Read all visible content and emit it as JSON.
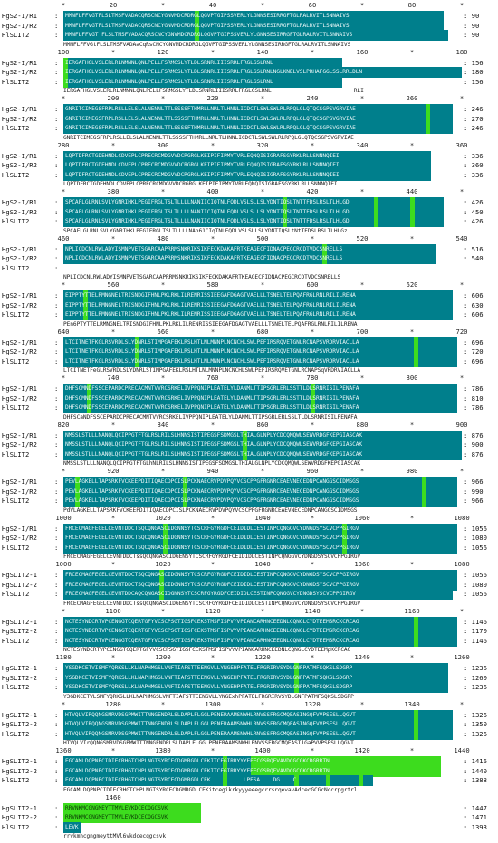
{
  "figure": {
    "type": "multiple-sequence-alignment",
    "colors": {
      "identical": "#007f8c",
      "similar": "#3ddc1e",
      "background": "#ffffff"
    },
    "blocks": [
      {
        "ruler": [
          "*",
          "20",
          "*",
          "40",
          "*",
          "60",
          "*",
          "80",
          "*"
        ],
        "rows": [
          {
            "name": "HgS2-I/R1",
            "end": "90",
            "seq": "MMNFLFFVGTFLSLTMSFVADACQRSCNCYGNVMDCRDRGLQGVPTGIPSSVERLYLGNNSESIRRGFTGLRALRVITLSNNAIVS"
          },
          {
            "name": "HgS2-I/R2",
            "end": "90",
            "seq": "MMNFLFFVGTFLSLTMSFVADACQRSCNCYGNVMDCRDRGLQGVPTGIPSSVERLYLGNNSESIRRGFTGLRALRVITLSNNAIVS"
          },
          {
            "name": "HlSLIT2",
            "end": "90",
            "seq": "MMNFLFFVGT FLSLTMSFVADACQRSCNCYGNVMDCRDRGLQGVPTGIPSSVERLYLGNNSESIRRGFTGLRALRVITLSNNAIVS"
          }
        ],
        "consensus": "MMNFLFFVGtFLSLTMSFVADAaCqRsCNCYGNVMDCRDRGLQGVPTGIPSSVERLYLGNNSESIRRGFTGLRALRVITLSNNAIVS"
      },
      {
        "ruler": [
          "100",
          "*",
          "120",
          "*",
          "140",
          "*",
          "160",
          "*",
          "180"
        ],
        "rows": [
          {
            "name": "HgS2-I/R1",
            "end": "156",
            "seq": "IERGAFHGLVSLERLRLNMNNLQNLPELLFSRMGSLYTLDLSRNRLIIISRRLFRGLGSLRNL"
          },
          {
            "name": "HgS2-I/R2",
            "end": "180",
            "seq": "IERGAFHGLVSLERLRLNMNNLQNLPELLFSRMGSLYTLDLSRNRLIIISRRLFRGLGSLRNLNGLKNELVSLPRHAFGGLSSLRRLDLN"
          },
          {
            "name": "HlSLIT2",
            "end": "156",
            "seq": "IERGAFHGLVSLERLRLNMNNLQNLPELLFSRMGSLYTLDLSRNRLIIISRRLFRGLGSLRNL"
          }
        ],
        "consensus": "IERGAFHGLVSLERLRLNMNNLQNLPELLFSRMGSLYTLDLSRNRLIIISRRLFRGLGSLRNL                         RLI"
      },
      {
        "ruler": [
          "*",
          "200",
          "*",
          "220",
          "*",
          "240",
          "*",
          "260",
          "*"
        ],
        "rows": [
          {
            "name": "HgS2-I/R1",
            "end": "246",
            "seq": "GNRITCIMEGSFRPLRSLLELSLALNENNLTTLSSSSFTHMRLLNRLTLHNNLICDCTLSWLSWLRLRPQLGLQTQCSGPSVGRVIAE"
          },
          {
            "name": "HgS2-I/R2",
            "end": "270",
            "seq": "GNRITCIMEGSFRPLRSLLELSLALNENNLTTLSSSSFTHMRLLNRLTLHNNLICDCTLSWLSWLRLRPQLGLQTQCSGPSVGRVIAE"
          },
          {
            "name": "HlSLIT2",
            "end": "246",
            "seq": "GNRITCIMEGSFRPLRSLLELSLALNENNLTTLSSSSFTHMRLLNRLTLHNNLICDCTLSWLSWLRLRPQLGLQTQCSGPSVGRVIAE"
          }
        ],
        "consensus": "GNRITCIMEGSFRPLRSLLELSLALNENNLTTLSSSSFTHMRLLNRLTLHNNLICDCTLSWLSWLRLRPQLGLQTQCSGPSVGRVIAE"
      },
      {
        "ruler": [
          "280",
          "*",
          "300",
          "*",
          "320",
          "*",
          "340",
          "*",
          "360"
        ],
        "rows": [
          {
            "name": "HgS2-I/R1",
            "end": "336",
            "seq": "LQPTDFRCTGDEHNDLCDVEPLCPRECRCMDGVVDCRGRGLKEIPIFIPMYTVRLEQNQISIGRAFSGYRKLRLLSNNNQIEI"
          },
          {
            "name": "HgS2-I/R2",
            "end": "360",
            "seq": "LQPTDFRCTGDEHNDLCDVEPLCPRECRCMDGVVDCRGRGLKEIPIFIPMYTVRLEQNQISIGRAFSGYRKLRLLSNNNQIEI"
          },
          {
            "name": "HlSLIT2",
            "end": "336",
            "seq": "LQPTDFRCTGDEHNDLCDVEPLCPRECRCMDGVVDCRGRGLKEIPIFIPMYTVRLEQNQISIGRAFSGYRKLRLLSNNNQIEI"
          }
        ],
        "consensus": "LQPTDFRCTGDEHNDLCDVEPLCPRECRCMDGVVDCRGRGLKEIPIFIPMYTVRLEQNQISIGRAFSGYRKLRLLSNNNQIEI"
      },
      {
        "ruler": [
          "*",
          "380",
          "*",
          "400",
          "*",
          "420",
          "*",
          "440",
          "*"
        ],
        "rows": [
          {
            "name": "HgS2-I/R1",
            "end": "426",
            "seq": "SPCAFLGLRNLSVLYGNRIHKLPEGIFRGLTSLTLLLLNANIICIQTNLFQDLVSLSLLSLYDNTIQSLTNTTFDSLRSLTLHLGD"
          },
          {
            "name": "HgS2-I/R2",
            "end": "450",
            "seq": "SPCAFLGLRNLSVLYGNRIHKLPEGIFRGLTSLTLLLLNANIICIQTNLFQDLVSLSLLSLYDNTIQSLTNTTFDSLRSLTLHLGD"
          },
          {
            "name": "HlSLIT2",
            "end": "426",
            "seq": "SPCAFLGLRNLSVLYGNRIHKLPEGIFRGLTSLTLLLLNANIICIQTNLFQDLVSLSLLSLYDNTIQSLTNTTFDSLRSLTLHLGD"
          }
        ],
        "consensus": "SPCAFLGLRNLSVLYGNRIHKLPEGIFRGLTSLTLLLLNAn61CIqTNLFQDLVSLSLLSLYDNTIQSLtNtTFDSLRSLTLHLGz"
      },
      {
        "ruler": [
          "460",
          "*",
          "480",
          "*",
          "500",
          "*",
          "520",
          "*",
          "540"
        ],
        "rows": [
          {
            "name": "HgS2-I/R1",
            "end": "516",
            "seq": "NPLICDCNLRWLADYISMNPVETSGARCAAPRRMSNKRIKSIKFECKDAKAFRTKEAGECFIDNACPEGCRCDTVDCSNRELLS"
          },
          {
            "name": "HgS2-I/R2",
            "end": "540",
            "seq": "NPLICDCNLRWLADYISMNPVETSGARCAAPRRMSNKRIKSIKFECKDAKAFRTKEAGECFIDNACPEGCRCDTVDCSNRELLS"
          },
          {
            "name": "HlSLIT2",
            "end": "",
            "seq": ""
          }
        ],
        "consensus": "NPLICDCNLRWLADYISMNPVETSGARCAAPRRMSNKRIKSIKFECKDAKAFRTKEAGECFIDNACPEGCRCDTVDCSNRELLS"
      },
      {
        "ruler": [
          "*",
          "560",
          "*",
          "580",
          "*",
          "600",
          "*",
          "620",
          "*"
        ],
        "rows": [
          {
            "name": "HgS2-I/R1",
            "end": "606",
            "seq": "EIPPTYTTELRMNGNELTRISNDGIFHNLPKLRKLILRENRISSIEEGAFDGAGTVAELLLTSNELTELPQAFRGLRNLRILILRENA"
          },
          {
            "name": "HgS2-I/R2",
            "end": "630",
            "seq": "EIPPTYTTELRMNGNELTRISNDGIFHNLPKLRKLILRENRISSIEEGAFDGAGTVAELLLTSNELTELPQAFRGLRNLRILILRENA"
          },
          {
            "name": "HlSLIT2",
            "end": "606",
            "seq": "EIPPTYTTELRMNGNELTRISNDGIFHNLPKLRKLILRENRISSIEEGAFDGAGTVAELLLTSNELTELPQAFRGLRNLRILILRENA"
          }
        ],
        "consensus": "PEn6PTYTTELRMNGNELTRISNDGIFHNLPKLRKLILRENRISSIEEGAFDGAGTVAELLLTSNELTELPQAFRGLRNLRILILRENA"
      },
      {
        "ruler": [
          "640",
          "*",
          "660",
          "*",
          "680",
          "*",
          "700",
          "*",
          "720"
        ],
        "rows": [
          {
            "name": "HgS2-I/R1",
            "end": "696",
            "seq": "LTCITNETFKGLRSVRDLSLYDNRLSTIMPGAFEKLRSLHTLNLMNNPLNCNCHLSWLPEFIRSRQVETGNLRCNAPSVRDRVIACLLA"
          },
          {
            "name": "HgS2-I/R2",
            "end": "720",
            "seq": "LTCITNETFKGLRSVRDLSLYDNRLSTIMPGAFEKLRSLHTLNLMNNPLNCNCHLSWLPEFIRSRQVETGNLRCNAPSVRDRVIACLLA"
          },
          {
            "name": "HlSLIT2",
            "end": "696",
            "seq": "LTCITNETFKGLRSVRDLSLYDNRLSTIMPGAFEKLRSLHTLNLMNNPLNCNCHLSWLPEFIRSRQVETGNLRCNAPSVRDRVIACLLA"
          }
        ],
        "consensus": "LTCITNETFeGLRSVRDLSLYDNRLSTIMPGAFEKLRSLHTLNLMNNPLNCNCHLSWLPEFIRSRQVETGNLRCNAPSqVRDRVIACLLA"
      },
      {
        "ruler": [
          "*",
          "740",
          "*",
          "760",
          "*",
          "780",
          "*",
          "800",
          "*"
        ],
        "rows": [
          {
            "name": "HgS2-I/R1",
            "end": "786",
            "seq": "DHFSCMNDFSSCEPARDCPRECACMNTVVRCSRKELIVPPQNIPLEATELYLDANMLTTIPSGRLERLSSTTLDLSRNRISILPENAFA"
          },
          {
            "name": "HgS2-I/R2",
            "end": "810",
            "seq": "DHFSCMNDFSSCEPARDCPRECACMNTVVRCSRKELIVPPQNIPLEATELYLDANMLTTIPSGRLERLSSTTLDLSRNRISILPENAFA"
          },
          {
            "name": "HlSLIT2",
            "end": "786",
            "seq": "DHFSCMNDFSSCEPARDCPRECACMNTVVRCSRKELIVPPQNIPLEATELYLDANMLTTIPSGRLERLSSTTLDLSRNRISILPENAFA"
          }
        ],
        "consensus": "DHFSCaNDFSSCEPARDCPRECACMNTVVRCSRKELIVPPQNIPLEATELYLDANMLTTIPSGRLERLSSLTLDLSRNRISILPENAFA"
      },
      {
        "ruler": [
          "820",
          "*",
          "840",
          "*",
          "860",
          "*",
          "880",
          "*",
          "900"
        ],
        "rows": [
          {
            "name": "HgS2-I/R1",
            "end": "876",
            "seq": "NMSSLSTLLLNANQLQCIPPGTFTGLRSLRILSLHNNSISTIPEGSFSDMGSLTHIALGLNPLYCDCQMQWLSEWVRDGFKEPGIASCAK"
          },
          {
            "name": "HgS2-I/R2",
            "end": "900",
            "seq": "NMSSLSTLLLNANQLQCIPPGTFTGLRSLRILSLHNNSISTIPEGSFSDMGSLTHIALGLNPLYCDCQMQWLSEWVRDGFKEPGIASCAK"
          },
          {
            "name": "HlSLIT2",
            "end": "876",
            "seq": "NMSSLSTLLLNANQLQCIPPGTFTGLRSLRILSLHNNSISTIPEGSFSDMGSLTHIALGLNPLYCDCQMQWLSEWVRDGFKEPGIASCAK"
          }
        ],
        "consensus": "NMSSLSTLLLNANQLQCIPPGTFTGLhNLRILSLHNNSISTIPEGSFSDMGSLTHIALGLNPLYCDCQMQWLSEWVRDGFKEPGIASCAK"
      },
      {
        "ruler": [
          "*",
          "920",
          "*",
          "940",
          "*",
          "960",
          "*",
          "980",
          "*"
        ],
        "rows": [
          {
            "name": "HgS2-I/R1",
            "end": "966",
            "seq": "PEVLAGKELLTAPSRKFVCKEEPDITIQAECDPCISLPCKNAECRVPDVPQYVCSCPPGFRGNRCEAEVNECEDNPCANGGSCIDMSGS"
          },
          {
            "name": "HgS2-I/R2",
            "end": "990",
            "seq": "PEVLAGKELLTAPSRKFVCKEEPDITIQAECDPCISLPCKNAECRVPDVPQYVCSCPPGFRGNRCEAEVNECEDNPCANGGSCIDMSGS"
          },
          {
            "name": "HlSLIT2",
            "end": "966",
            "seq": "PEVLAGKELLTAPSRKFVCKEEPDITIQAECDPCISLPCKNAECRVPDVPQYVCSCPPGFRGNRCEAEVNECEDNPCANGGSCIDMSGS"
          }
        ],
        "consensus": "PdVLAGKELLTAPSRKFVCKEEPDITIQAECDPCISLPCKNAECRVPDVPQYVCSCPPGFRGNRCEAEVNECEDNPCANGGSCIDMSGS"
      },
      {
        "ruler": [
          "1000",
          "*",
          "1020",
          "*",
          "1040",
          "*",
          "1060",
          "*",
          "1080"
        ],
        "rows": [
          {
            "name": "HgS2-I/R1",
            "end": "1056",
            "seq": "FRCECMAGFEGELCEVNTDDCTSQCQNGASCIDGNNSYTCSCRFGYRGDFCEIDIDLCESTINPCQNGGVCYDNGDSYSCVCPPGIRGV"
          },
          {
            "name": "HgS2-I/R2",
            "end": "1080",
            "seq": "FRCECMAGFEGELCEVNTDDCTSQCQNGASCIDGNNSYTCSCRFGYRGDFCEIDIDLCESTINPCQNGGVCYDNGDSYSCVCPPGIRGV"
          },
          {
            "name": "HlSLIT2",
            "end": "1056",
            "seq": "FRCECMAGFEGELCEVNTDDCTSQCQNGASCIDGNNSYTCSCRFGYRGDFCEIDIDLCESTINPCQNGGVCYDNGDSYSCVCPPGIRGV"
          }
        ],
        "consensus": "FRCECMAGFEGELCEVNTDDCTssQCQNGASCIDGENSYTCSCRFGYRGDFCEIDIDLCESTINPCQNGGVCYDNGDSYSCVCPPGIRGV"
      },
      {
        "ruler": [
          "1000",
          "*",
          "1020",
          "*",
          "1040",
          "*",
          "1060",
          "*",
          "1080"
        ],
        "rows": [
          {
            "name": "HgSLIT2-1",
            "end": "1056",
            "seq": "FRCECMAGFEGELCEVNTDDCTSQCQNGASCIDGNNSYTCSCRFGYRGDFCEIDIDLCESTINPCQNGGVCYDNGDSYSCVCPPGIRGV"
          },
          {
            "name": "HgSLIT2-2",
            "end": "1080",
            "seq": "FRCECMAGFEGELCEVNTDDCTSQCQNGASCIDGNNSYTCSCRFGYRGDFCEIDIDLCESTINPCQNGGVCYDNGDSYSCVCPPGIRGV"
          },
          {
            "name": "HlSLIT2",
            "end": "1056",
            "seq": "FRCECMAGFEGELCEVNTDDCAQCQNGASCIDGNNSYTCSCRFGYRGDFCEIDIDLCESTINPCQNGGVCYDNGDSYSCVCPPGIRGV"
          }
        ],
        "consensus": "FRCECMAGFEGELCEVNTDDCTssQCQNGASCIDGENSYTCSCRFGYRGDFCEIDIDLCESTINPCQNGGVCYDNGDSYSCVCPPGIRGV"
      },
      {
        "ruler": [
          "*",
          "1100",
          "*",
          "1120",
          "*",
          "1140",
          "*",
          "1160",
          "*"
        ],
        "rows": [
          {
            "name": "HgSLIT2-1",
            "end": "1146",
            "seq": "NCTESYNDCRTVPCENGGTCQERTGFYVCSCPSGTIGSFCEKSTMSFISPVYVPIANCARHNCEEDNLCQNGLCYDTEEMSRCKCRCAG"
          },
          {
            "name": "HgSLIT2-2",
            "end": "1170",
            "seq": "NCTESYNDCRTVPCENGGTCQERTGFYVCSCPSGTIGSFCEKSTMSFISPVYVPIANCARHNCEEDNLCQNGLCYDTEEMSRCKCRCAG"
          },
          {
            "name": "HlSLIT2",
            "end": "1146",
            "seq": "NCTESYNDCRTVPCENGGTCQERTGFYVCSCPSGTIGSFCEKSTMSFISPVYVPIANCARHNCEEDNLCQNGLCYDTEEMSRCKCRCAG"
          }
        ],
        "consensus": "NCTESYNDCRTVPCENGGTCQERTGFYVCSCPSGTIGSFCEKSTMSFISPVYVPIANCARHNCEEDNLCQNGLCYDTEEMpKCRCAG"
      },
      {
        "ruler": [
          "1180",
          "*",
          "1200",
          "*",
          "1220",
          "*",
          "1240",
          "*",
          "1260"
        ],
        "rows": [
          {
            "name": "HgSLIT2-1",
            "end": "1236",
            "seq": "YSGDKCETVISMFYQRKSLLKLNAPHMGSLVNFTIAFSTTEENGVLLYNGEHPFATELFRGRIRVSYDLGNFPATMFSQKSLSDGRP"
          },
          {
            "name": "HgSLIT2-2",
            "end": "1260",
            "seq": "YSGDKCETVISMFYQRKSLLKLNAPHMGSLVNFTIAFSTTEENGVLLYNGEHPFATELFRGRIRVSYDLGNFPATMFSQKSLSDGRP"
          },
          {
            "name": "HlSLIT2",
            "end": "1236",
            "seq": "YSGDKCETVISMFYQRKSLLKLNAPHMGSLVNFTIAFSTTEENGVLLYNGEHPFATELFRGRIRVSYDLGNFPATMFSQKSLSDGRP"
          }
        ],
        "consensus": "Y3GDKCETVLSMFYQRKSLLKLNAPHMGSLVNFTIAFSTTEENGVLLYNGExhPFATELFRGRIRVSYDLGNFPATMFSQKSLSDGRP"
      },
      {
        "ruler": [
          "*",
          "1280",
          "*",
          "1300",
          "*",
          "1320",
          "*",
          "1340",
          "*"
        ],
        "rows": [
          {
            "name": "HgSLIT2-1",
            "end": "1326",
            "seq": "HTVQLVIRQQNGSMRVDSGPMWITTNNGENDRLSLDAPLFLGGLPENERAAMSNWHLRNVSSFRGCMQEASINGQFVVPSESLLQGVT"
          },
          {
            "name": "HgSLIT2-2",
            "end": "1350",
            "seq": "HTVQLVIRQQNGSMRVDSGPMWITTNNGENDRLSLDAPLFLGGLPENERAAMSNWHLRNVSSFRGCMQEASINGQFVVPSESLLQGVT"
          },
          {
            "name": "HlSLIT2",
            "end": "1326",
            "seq": "HTVQLVIRQQNGSMRVDSGPMWITTNNGENDRLSLDAPLFLGGLPENERAAMSNWHLRNVSSFRGCMQEASINGQFVVPSESLLQGVT"
          }
        ],
        "consensus": "HTVQLVIrQQNGSMRVDSGPMWITTNNGENDRLSLDAPLFLGGLPENERAAMSNWHLRNVSSFRGCMQEASI1GaPVVPSESLLQGVT"
      },
      {
        "ruler": [
          "1360",
          "*",
          "1380",
          "*",
          "1400",
          "*",
          "1420",
          "*",
          "1440"
        ],
        "rows": [
          {
            "name": "HgSLIT2-1",
            "end": "1416",
            "seq": "EGCAMLDQPNPCIDIECRHGTCHPLNGTSYRCECDGMRGDLCEKITCEGIRRYYYEEECGSRQEVAVDCGCGKCRGRRTNL"
          },
          {
            "name": "HgSLIT2-2",
            "end": "1440",
            "seq": "EGCAMLDQPNPCIDIECRHGTCHPLNGTSYRCECDGMRGDLCEKITCEGIRRYYYEEECGSRQEVAVDCGCGKCRGRRTNL"
          },
          {
            "name": "HlSLIT2",
            "end": "1388",
            "seq": "EGCAMLDQPNPCIDIECRHGTCHPLNGTSYRCECDGMRGDLCEK          LPESA    DG    C"
          }
        ],
        "consensus": "EGCAMLDQPNPCIDIECRHGTCHPLNGTSYRCECDGMRGDLCEKitcegikrkyyyeeegcrrsrqevavAdcecGCGcNccrpgrtrl"
      },
      {
        "ruler": [
          "",
          "1460",
          "",
          "",
          "",
          "",
          "",
          "",
          ""
        ],
        "rows": [
          {
            "name": "HgSLIT2-1",
            "end": "1447",
            "seq": "RRVNKMCGNGMEYTTMVLEVKDCECQGCSVK"
          },
          {
            "name": "HgSLIT2-2",
            "end": "1471",
            "seq": "RRVNKMCGNGMEYTTMVLEVKDCECQGCSVK"
          },
          {
            "name": "HlSLIT2",
            "end": "1393",
            "seq": "LEVK"
          }
        ],
        "consensus": "rrvkmhcgngmeyttMVl6vkdcecqgcsvk"
      }
    ]
  }
}
